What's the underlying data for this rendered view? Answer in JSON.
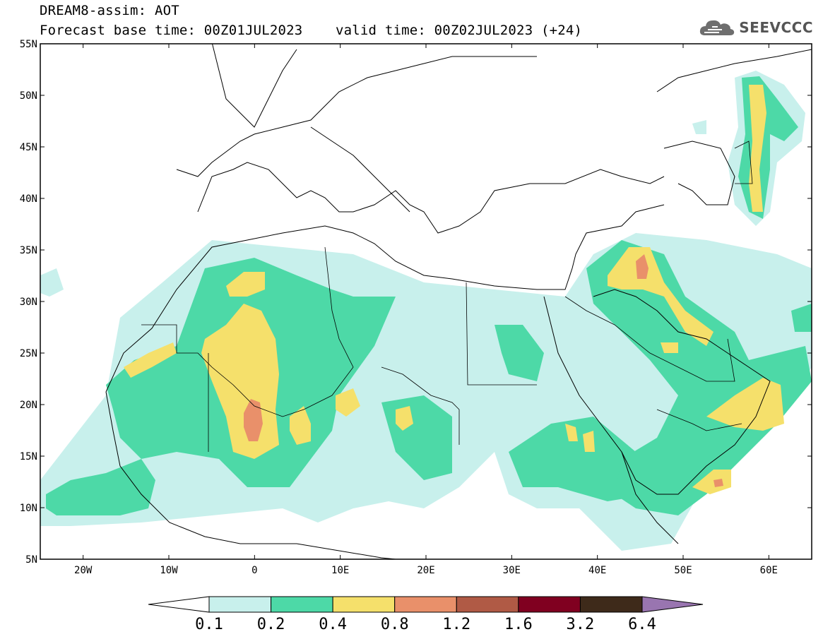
{
  "title": {
    "line1": "DREAM8-assim: AOT",
    "line2": "Forecast base time: 00Z01JUL2023    valid time: 00Z02JUL2023 (+24)"
  },
  "logo": {
    "text": "SEEVCCC",
    "icon": "cloud-icon"
  },
  "map": {
    "lat_labels": [
      "55N",
      "50N",
      "45N",
      "40N",
      "35N",
      "30N",
      "25N",
      "20N",
      "15N",
      "10N",
      "5N"
    ],
    "lon_labels": [
      "20W",
      "10W",
      "0",
      "10E",
      "20E",
      "30E",
      "40E",
      "50E",
      "60E"
    ],
    "lon_range": [
      -25,
      65
    ],
    "lat_range": [
      5,
      55
    ],
    "projection": "cylindrical equidistant"
  },
  "colorbar": {
    "labels": [
      "0.1",
      "0.2",
      "0.4",
      "0.8",
      "1.2",
      "1.6",
      "3.2",
      "6.4"
    ],
    "colors": [
      "#ffffff",
      "#c8f0ec",
      "#4dd9a7",
      "#f5e06b",
      "#e9906a",
      "#b05a45",
      "#800020",
      "#3e2a1a",
      "#9975b0"
    ]
  }
}
